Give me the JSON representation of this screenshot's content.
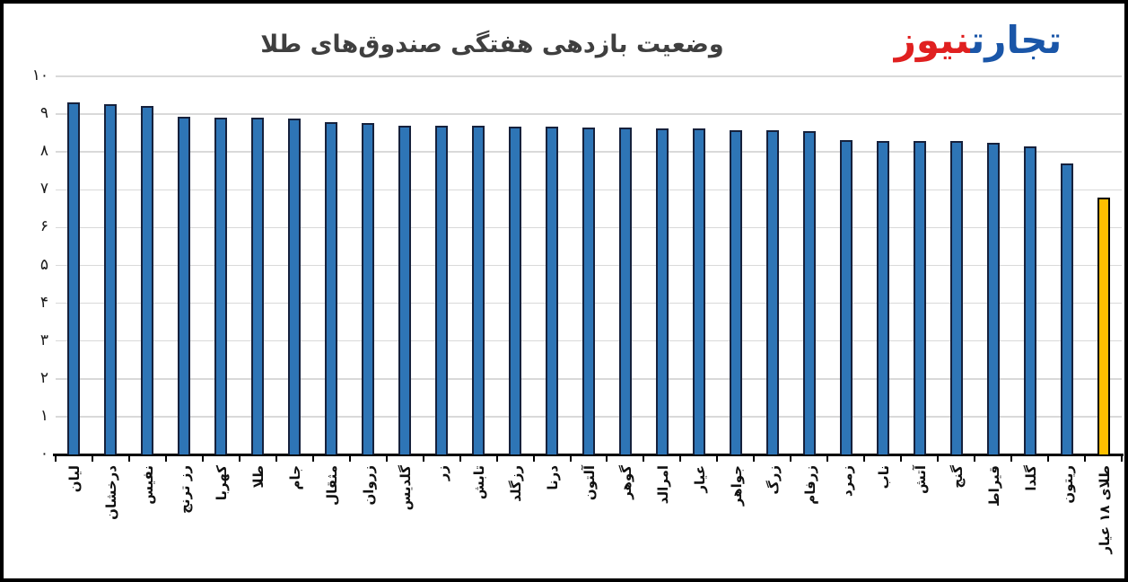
{
  "page": {
    "background": "#ffffff",
    "frame_border": "#000000"
  },
  "logo": {
    "part_blue": "تجارت",
    "part_red": "نیوز",
    "blue_color": "#1a56a8",
    "red_color": "#e02020",
    "underline_color": "#bfbfbf"
  },
  "chart_data": {
    "type": "bar",
    "title": "وضعیت بازدهی هفتگی صندوق‌های طلا",
    "xlabel": "",
    "ylabel": "",
    "ylim": [
      0,
      10
    ],
    "grid": "horizontal",
    "legend": "none",
    "gridline_color": "#d9d9d9",
    "axis_color": "#000000",
    "categories": [
      "لیان",
      "درخشان",
      "نفیس",
      "رز ترنج",
      "کهربا",
      "طلا",
      "جام",
      "مثقال",
      "زروان",
      "گلدیس",
      "زر",
      "تابش",
      "رزگلد",
      "درنا",
      "آلتون",
      "گوهر",
      "امرالد",
      "عیار",
      "جواهر",
      "زرگ",
      "زرفام",
      "زمرد",
      "ناب",
      "آتش",
      "گنج",
      "قیراط",
      "گلدا",
      "ریتون",
      "طلای ۱۸ عیار"
    ],
    "values": [
      9.32,
      9.27,
      9.22,
      8.94,
      8.91,
      8.91,
      8.88,
      8.78,
      8.77,
      8.7,
      8.7,
      8.69,
      8.68,
      8.66,
      8.65,
      8.64,
      8.62,
      8.62,
      8.58,
      8.58,
      8.56,
      8.32,
      8.28,
      8.28,
      8.28,
      8.24,
      8.15,
      7.7,
      6.8
    ],
    "bar_fill": "#2e75b6",
    "bar_border": "#16213c",
    "highlight_index": 28,
    "highlight_fill": "#ffc000",
    "highlight_border": "#000000",
    "ytick_values": [
      0,
      1,
      2,
      3,
      4,
      5,
      6,
      7,
      8,
      9,
      10
    ],
    "ytick_labels": [
      "۰",
      "۱",
      "۲",
      "۳",
      "۴",
      "۵",
      "۶",
      "۷",
      "۸",
      "۹",
      "۱۰"
    ]
  }
}
